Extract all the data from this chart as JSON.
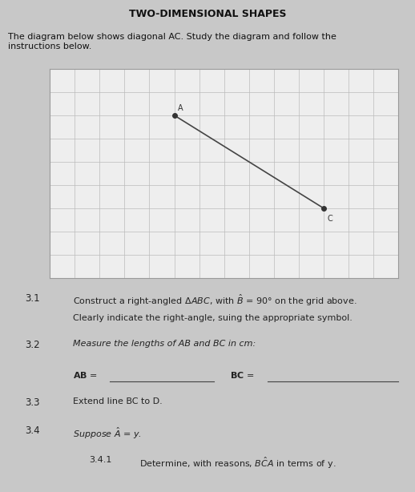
{
  "title_partial": "TWO-DIMENSIONAL SHAPES",
  "intro_text": "The diagram below shows diagonal AC. Study the diagram and follow the\ninstructions below.",
  "page_background": "#c8c8c8",
  "grid_bg": "#eeeeee",
  "grid_color": "#bbbbbb",
  "point_A": [
    5,
    7
  ],
  "point_C": [
    11,
    3
  ],
  "point_color": "#333333",
  "line_color": "#444444",
  "label_A": "A",
  "label_C": "C",
  "grid_cols": 14,
  "grid_rows": 9,
  "font_size_title": 9,
  "font_size_intro": 8,
  "font_size_item": 8.5
}
